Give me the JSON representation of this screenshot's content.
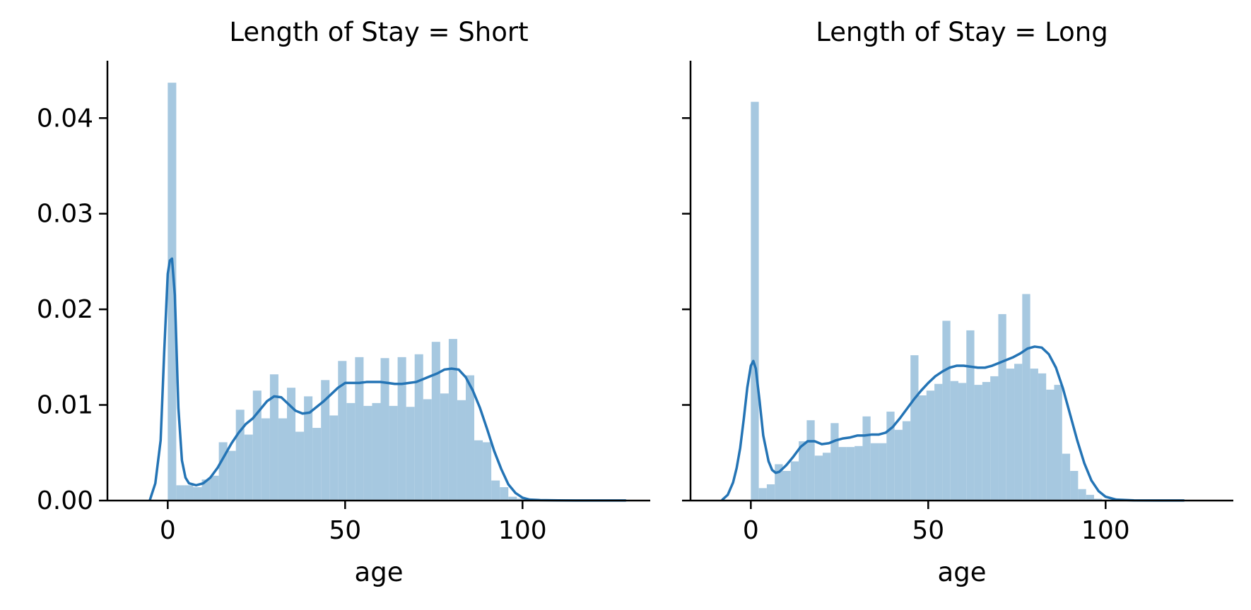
{
  "chart_data": [
    {
      "type": "bar",
      "title": "Length of Stay = Short",
      "xlabel": "age",
      "ylabel": "",
      "xlim": [
        -17,
        136
      ],
      "ylim": [
        0,
        0.046
      ],
      "xticks": [
        0,
        50,
        100
      ],
      "xtick_labels": [
        "0",
        "50",
        "100"
      ],
      "yticks": [
        0,
        0.01,
        0.02,
        0.03,
        0.04
      ],
      "ytick_labels": [
        "0.00",
        "0.01",
        "0.02",
        "0.03",
        "0.04"
      ],
      "grid": false,
      "hist_color": "#a6c8e0",
      "kde_color": "#2474b5",
      "bins": {
        "start": 0,
        "width": 2.4,
        "values": [
          0.0437,
          0.0016,
          0.0016,
          0.0014,
          0.0022,
          0.0026,
          0.0061,
          0.0052,
          0.0095,
          0.0069,
          0.0115,
          0.0086,
          0.0132,
          0.0086,
          0.0118,
          0.0072,
          0.0109,
          0.0076,
          0.0126,
          0.0089,
          0.0146,
          0.0102,
          0.015,
          0.0099,
          0.0102,
          0.0149,
          0.0099,
          0.015,
          0.0098,
          0.0153,
          0.0106,
          0.0166,
          0.0112,
          0.0169,
          0.0105,
          0.0131,
          0.0063,
          0.0061,
          0.0021,
          0.0014,
          0.0004,
          0.0002,
          0.0001
        ]
      },
      "kde": {
        "x": [
          -5,
          -3.5,
          -2,
          -1,
          0,
          0.6,
          1.2,
          2,
          3,
          4,
          5,
          6,
          8,
          10,
          12,
          14,
          16,
          18,
          20,
          22,
          24,
          26,
          28,
          30,
          32,
          34,
          36,
          38,
          40,
          42,
          44,
          46,
          48,
          50,
          52,
          54,
          56,
          58,
          60,
          62,
          64,
          66,
          68,
          70,
          72,
          74,
          76,
          78,
          80,
          82,
          84,
          86,
          88,
          90,
          92,
          94,
          96,
          98,
          100,
          102,
          105,
          110,
          115,
          120,
          125,
          129
        ],
        "y": [
          0.0001,
          0.0018,
          0.0063,
          0.0155,
          0.0237,
          0.0251,
          0.0253,
          0.0215,
          0.0097,
          0.0042,
          0.0024,
          0.0018,
          0.0016,
          0.0018,
          0.0024,
          0.0034,
          0.0047,
          0.006,
          0.0071,
          0.008,
          0.0086,
          0.0095,
          0.0104,
          0.0109,
          0.0108,
          0.0101,
          0.0094,
          0.0091,
          0.0092,
          0.0098,
          0.0104,
          0.0111,
          0.0118,
          0.0123,
          0.0123,
          0.0123,
          0.0124,
          0.0124,
          0.0124,
          0.0123,
          0.0122,
          0.0122,
          0.0123,
          0.0124,
          0.0127,
          0.013,
          0.0133,
          0.0137,
          0.0138,
          0.0137,
          0.0129,
          0.0115,
          0.0097,
          0.0075,
          0.0052,
          0.0033,
          0.0017,
          0.0008,
          0.0003,
          0.0001,
          5e-05,
          2e-05,
          1e-05,
          1e-05,
          1e-05,
          1e-05
        ]
      }
    },
    {
      "type": "bar",
      "title": "Length of Stay = Long",
      "xlabel": "age",
      "ylabel": "",
      "xlim": [
        -17,
        136
      ],
      "ylim": [
        0,
        0.046
      ],
      "xticks": [
        0,
        50,
        100
      ],
      "xtick_labels": [
        "0",
        "50",
        "100"
      ],
      "yticks": [
        0,
        0.01,
        0.02,
        0.03,
        0.04
      ],
      "ytick_labels": [
        "",
        "",
        "",
        "",
        ""
      ],
      "grid": false,
      "hist_color": "#a6c8e0",
      "kde_color": "#2474b5",
      "bins": {
        "start": 0,
        "width": 2.25,
        "values": [
          0.0417,
          0.0013,
          0.0017,
          0.0038,
          0.0031,
          0.0041,
          0.0062,
          0.0084,
          0.0047,
          0.005,
          0.0081,
          0.0056,
          0.0056,
          0.0057,
          0.0088,
          0.006,
          0.006,
          0.0093,
          0.0074,
          0.0083,
          0.0152,
          0.011,
          0.0115,
          0.0122,
          0.0188,
          0.0125,
          0.0123,
          0.0178,
          0.0121,
          0.0124,
          0.013,
          0.0195,
          0.0138,
          0.0143,
          0.0216,
          0.0138,
          0.0133,
          0.0116,
          0.0121,
          0.0049,
          0.0031,
          0.0012,
          0.0006,
          0.0002,
          0.0001
        ]
      },
      "kde": {
        "x": [
          -8,
          -6.5,
          -5,
          -4,
          -3,
          -2,
          -1,
          0,
          0.7,
          1.4,
          2.5,
          3.5,
          5,
          6,
          7,
          8,
          10,
          12,
          14,
          16,
          18,
          20,
          22,
          24,
          26,
          28,
          30,
          32,
          34,
          36,
          38,
          40,
          42,
          44,
          46,
          48,
          50,
          52,
          54,
          56,
          58,
          60,
          62,
          64,
          66,
          68,
          70,
          72,
          74,
          76,
          78,
          80,
          82,
          84,
          86,
          88,
          90,
          92,
          94,
          96,
          98,
          100,
          103,
          108,
          115,
          122
        ],
        "y": [
          0.0001,
          0.0006,
          0.0019,
          0.0034,
          0.0055,
          0.0085,
          0.0118,
          0.0141,
          0.0146,
          0.0138,
          0.0103,
          0.0068,
          0.0041,
          0.0032,
          0.0029,
          0.003,
          0.0037,
          0.0046,
          0.0056,
          0.0062,
          0.0062,
          0.0059,
          0.006,
          0.0063,
          0.0065,
          0.0066,
          0.0068,
          0.0068,
          0.0069,
          0.0069,
          0.0071,
          0.0077,
          0.0086,
          0.0096,
          0.0106,
          0.0115,
          0.0123,
          0.013,
          0.0135,
          0.0139,
          0.0141,
          0.0141,
          0.014,
          0.0139,
          0.0139,
          0.0141,
          0.0144,
          0.0147,
          0.015,
          0.0154,
          0.0159,
          0.0161,
          0.016,
          0.0153,
          0.0139,
          0.0117,
          0.009,
          0.0063,
          0.0039,
          0.0021,
          0.001,
          0.0004,
          0.0001,
          2e-05,
          1e-05,
          1e-05
        ]
      }
    }
  ]
}
